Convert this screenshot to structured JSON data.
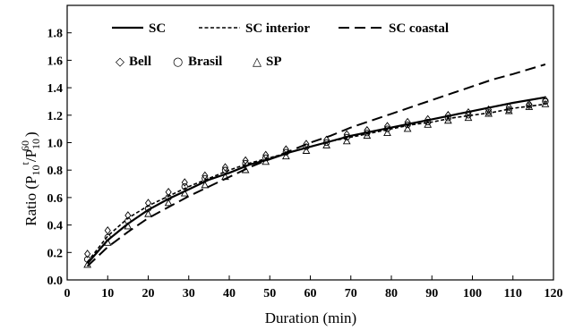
{
  "chart_data": {
    "type": "line",
    "title": "",
    "xlabel": "Duration (min)",
    "ylabel_main": "Ratio (P",
    "ylabel_sub1": "10",
    "ylabel_sup1": "t",
    "ylabel_mid": "/P",
    "ylabel_sub2": "10",
    "ylabel_sup2": "60",
    "ylabel_end": ")",
    "xlim": [
      0,
      120
    ],
    "ylim": [
      0,
      2.0
    ],
    "xticks": [
      0,
      10,
      20,
      30,
      40,
      50,
      60,
      70,
      80,
      90,
      100,
      110,
      120
    ],
    "yticks": [
      0.0,
      0.2,
      0.4,
      0.6,
      0.8,
      1.0,
      1.2,
      1.4,
      1.6,
      1.8
    ],
    "ytick_labels": [
      "0.0",
      "0.2",
      "0.4",
      "0.6",
      "0.8",
      "1.0",
      "1.2",
      "1.4",
      "1.6",
      "1.8"
    ],
    "grid": false,
    "legend_position": "top",
    "series": [
      {
        "name": "SC",
        "style": "solid",
        "x": [
          5,
          10,
          15,
          20,
          25,
          30,
          35,
          40,
          45,
          50,
          55,
          60,
          65,
          70,
          75,
          80,
          85,
          90,
          95,
          100,
          105,
          110,
          118
        ],
        "y": [
          0.12,
          0.29,
          0.41,
          0.51,
          0.59,
          0.66,
          0.73,
          0.78,
          0.84,
          0.88,
          0.93,
          0.97,
          1.01,
          1.05,
          1.08,
          1.11,
          1.14,
          1.17,
          1.2,
          1.23,
          1.26,
          1.29,
          1.33
        ]
      },
      {
        "name": "SC interior",
        "style": "dotted",
        "x": [
          5,
          10,
          15,
          20,
          25,
          30,
          35,
          40,
          45,
          50,
          55,
          60,
          65,
          70,
          75,
          80,
          85,
          90,
          95,
          100,
          105,
          110,
          118
        ],
        "y": [
          0.13,
          0.32,
          0.45,
          0.54,
          0.61,
          0.68,
          0.74,
          0.8,
          0.85,
          0.89,
          0.93,
          0.97,
          1.01,
          1.04,
          1.07,
          1.1,
          1.13,
          1.15,
          1.18,
          1.2,
          1.22,
          1.25,
          1.28
        ]
      },
      {
        "name": "SC coastal",
        "style": "dashed",
        "x": [
          5,
          10,
          15,
          20,
          25,
          30,
          35,
          40,
          45,
          50,
          55,
          60,
          65,
          70,
          75,
          80,
          85,
          90,
          95,
          100,
          105,
          110,
          118
        ],
        "y": [
          0.1,
          0.24,
          0.35,
          0.45,
          0.53,
          0.61,
          0.68,
          0.75,
          0.82,
          0.88,
          0.94,
          1.0,
          1.05,
          1.11,
          1.16,
          1.21,
          1.26,
          1.31,
          1.36,
          1.41,
          1.46,
          1.5,
          1.57
        ]
      }
    ],
    "points": [
      {
        "name": "Bell",
        "marker": "diamond",
        "x": [
          5,
          10,
          15,
          20,
          25,
          29,
          34,
          39,
          44,
          49,
          54,
          59,
          64,
          69,
          74,
          79,
          84,
          89,
          94,
          99,
          104,
          109,
          114,
          118
        ],
        "y": [
          0.19,
          0.36,
          0.47,
          0.56,
          0.64,
          0.71,
          0.76,
          0.82,
          0.87,
          0.91,
          0.95,
          0.99,
          1.02,
          1.06,
          1.09,
          1.12,
          1.15,
          1.17,
          1.2,
          1.22,
          1.24,
          1.26,
          1.28,
          1.31
        ]
      },
      {
        "name": "Brasil",
        "marker": "circle",
        "x": [
          5,
          10,
          15,
          20,
          25,
          29,
          34,
          39,
          44,
          49,
          54,
          59,
          64,
          69,
          74,
          79,
          84,
          89,
          94,
          99,
          104,
          109,
          114,
          118
        ],
        "y": [
          0.15,
          0.31,
          0.43,
          0.52,
          0.6,
          0.68,
          0.74,
          0.8,
          0.85,
          0.89,
          0.93,
          0.97,
          1.0,
          1.04,
          1.07,
          1.1,
          1.13,
          1.15,
          1.18,
          1.2,
          1.22,
          1.24,
          1.27,
          1.3
        ]
      },
      {
        "name": "SP",
        "marker": "triangle",
        "x": [
          5,
          10,
          15,
          20,
          25,
          29,
          34,
          39,
          44,
          49,
          54,
          59,
          64,
          69,
          74,
          79,
          84,
          89,
          94,
          99,
          104,
          109,
          114,
          118
        ],
        "y": [
          0.11,
          0.27,
          0.39,
          0.48,
          0.56,
          0.63,
          0.69,
          0.75,
          0.8,
          0.86,
          0.9,
          0.94,
          0.98,
          1.01,
          1.05,
          1.07,
          1.1,
          1.13,
          1.16,
          1.18,
          1.21,
          1.23,
          1.26,
          1.28
        ]
      }
    ],
    "legend": {
      "lines": [
        "SC",
        "SC interior",
        "SC coastal"
      ],
      "markers": [
        "Bell",
        "Brasil",
        "SP"
      ],
      "marker_glyphs": [
        "◇",
        "○",
        "△"
      ]
    }
  }
}
